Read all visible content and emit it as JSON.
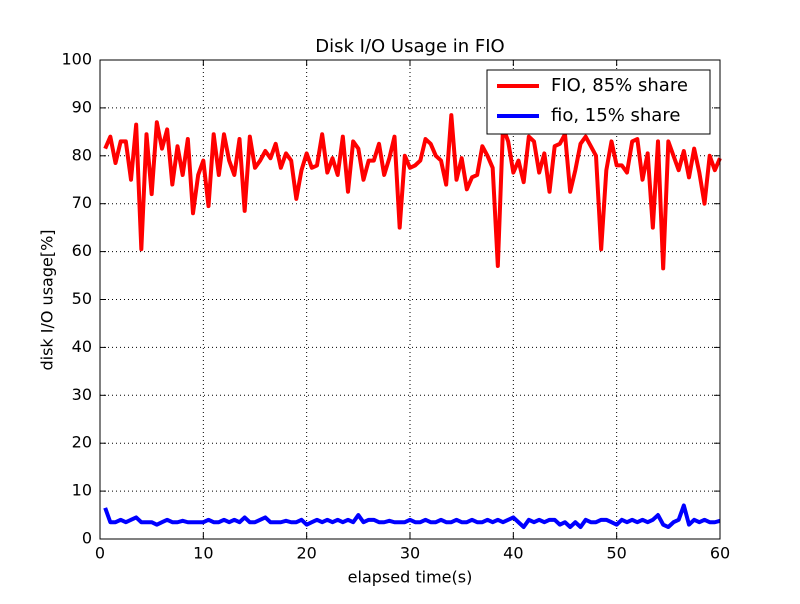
{
  "chart_data": {
    "type": "line",
    "title": "Disk I/O Usage in FIO",
    "xlabel": "elapsed time(s)",
    "ylabel": "disk I/O usage[%]",
    "x": [
      0.5,
      1,
      1.5,
      2,
      2.5,
      3,
      3.5,
      4,
      4.5,
      5,
      5.5,
      6,
      6.5,
      7,
      7.5,
      8,
      8.5,
      9,
      9.5,
      10,
      10.5,
      11,
      11.5,
      12,
      12.5,
      13,
      13.5,
      14,
      14.5,
      15,
      15.5,
      16,
      16.5,
      17,
      17.5,
      18,
      18.5,
      19,
      19.5,
      20,
      20.5,
      21,
      21.5,
      22,
      22.5,
      23,
      23.5,
      24,
      24.5,
      25,
      25.5,
      26,
      26.5,
      27,
      27.5,
      28,
      28.5,
      29,
      29.5,
      30,
      30.5,
      31,
      31.5,
      32,
      32.5,
      33,
      33.5,
      34,
      34.5,
      35,
      35.5,
      36,
      36.5,
      37,
      37.5,
      38,
      38.5,
      39,
      39.5,
      40,
      40.5,
      41,
      41.5,
      42,
      42.5,
      43,
      43.5,
      44,
      44.5,
      45,
      45.5,
      46,
      46.5,
      47,
      47.5,
      48,
      48.5,
      49,
      49.5,
      50,
      50.5,
      51,
      51.5,
      52,
      52.5,
      53,
      53.5,
      54,
      54.5,
      55,
      55.5,
      56,
      56.5,
      57,
      57.5,
      58,
      58.5,
      59,
      59.5,
      60
    ],
    "series": [
      {
        "name": "FIO, 85% share",
        "color": "#ff0000",
        "values": [
          81.5,
          84,
          78.5,
          83,
          83,
          75,
          86.5,
          60.5,
          84.5,
          72,
          87,
          81.5,
          85.5,
          74,
          82,
          76,
          83.5,
          68,
          76,
          79,
          69.5,
          84.5,
          76,
          84.5,
          79,
          76,
          83.5,
          68.5,
          84,
          77.5,
          79,
          81,
          79.5,
          82.5,
          77.5,
          80.5,
          79,
          71,
          77,
          80.5,
          77.5,
          78,
          84.5,
          76.5,
          79.5,
          76,
          84,
          72.5,
          83,
          81.5,
          75,
          79,
          79,
          82.5,
          76,
          79.5,
          84,
          65,
          80,
          77.5,
          78,
          79,
          83.5,
          82.5,
          80,
          79,
          74,
          88.5,
          75,
          79.5,
          73,
          75.5,
          76,
          82,
          80,
          77.5,
          57,
          86,
          83,
          76.5,
          79,
          74.5,
          84,
          83,
          76.5,
          80.5,
          72.5,
          82,
          82.5,
          84.5,
          72.5,
          77,
          82.5,
          84,
          82,
          80,
          60.5,
          77,
          83,
          78,
          78,
          76.5,
          83,
          83.5,
          75,
          80.5,
          65,
          83,
          56.5,
          83,
          80,
          77,
          81,
          75.5,
          81.5,
          76.5,
          70,
          80,
          77,
          79.5
        ]
      },
      {
        "name": "fio, 15% share",
        "color": "#0000ff",
        "values": [
          6.5,
          3.5,
          3.5,
          4,
          3.5,
          4,
          4.5,
          3.5,
          3.5,
          3.5,
          3,
          3.5,
          4,
          3.5,
          3.5,
          3.8,
          3.5,
          3.5,
          3.5,
          3.5,
          4,
          3.5,
          3.5,
          4,
          3.5,
          4,
          3.5,
          4.5,
          3.5,
          3.5,
          4,
          4.5,
          3.5,
          3.5,
          3.5,
          3.8,
          3.5,
          3.5,
          4,
          3,
          3.5,
          4,
          3.5,
          4,
          3.5,
          4,
          3.5,
          4,
          3.5,
          5,
          3.5,
          4,
          4,
          3.5,
          3.5,
          3.8,
          3.5,
          3.5,
          3.5,
          4,
          3.5,
          3.5,
          4,
          3.5,
          3.5,
          4,
          3.5,
          3.5,
          4,
          3.5,
          3.5,
          4,
          3.5,
          3.5,
          4,
          3.5,
          4,
          3.5,
          4,
          4.5,
          3.5,
          2.5,
          4,
          3.5,
          4,
          3.5,
          4,
          4,
          3,
          3.5,
          2.5,
          3.5,
          2.5,
          4,
          3.5,
          3.5,
          4,
          4,
          3.5,
          3,
          4,
          3.5,
          4,
          3.5,
          4,
          3.5,
          4,
          5,
          3,
          2.5,
          3.5,
          4,
          7,
          3,
          4,
          3.5,
          4,
          3.5,
          3.5,
          3.8
        ]
      }
    ],
    "xlim": [
      0,
      60
    ],
    "xticks": [
      0,
      10,
      20,
      30,
      40,
      50,
      60
    ],
    "ylim": [
      0,
      100
    ],
    "yticks": [
      0,
      10,
      20,
      30,
      40,
      50,
      60,
      70,
      80,
      90,
      100
    ],
    "grid": true,
    "legend": "upper right"
  }
}
